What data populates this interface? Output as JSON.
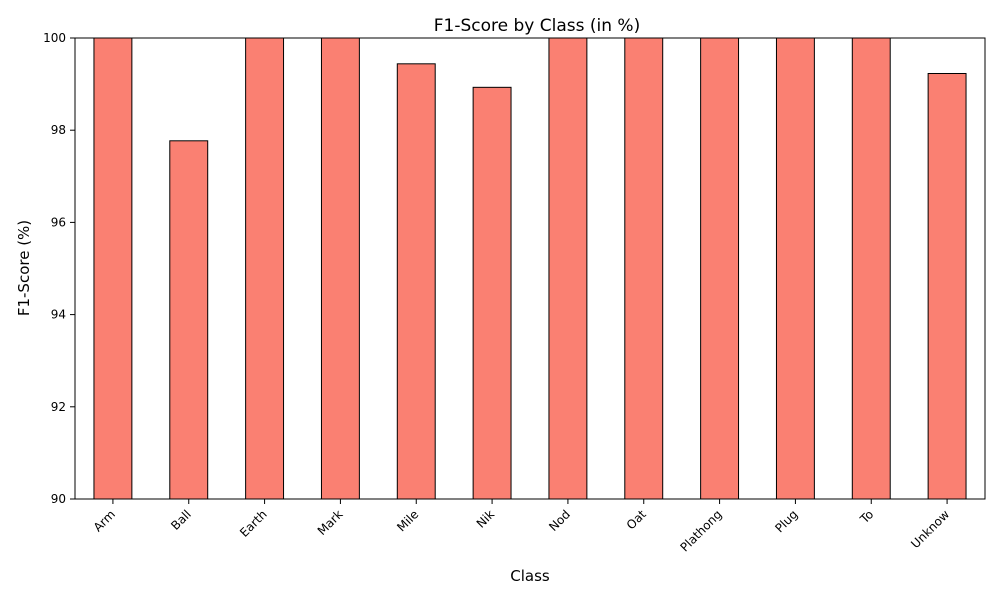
{
  "chart_data": {
    "type": "bar",
    "title": "F1-Score by Class (in %)",
    "xlabel": "Class",
    "ylabel": "F1-Score (%)",
    "categories": [
      "Arm",
      "Ball",
      "Earth",
      "Mark",
      "Mile",
      "Nik",
      "Nod",
      "Oat",
      "Plathong",
      "Plug",
      "To",
      "Unknow"
    ],
    "values": [
      100,
      97.77,
      100,
      100,
      99.44,
      98.93,
      100,
      100,
      100,
      100,
      100,
      99.23
    ],
    "ylim": [
      90,
      100
    ],
    "yticks": [
      90,
      92,
      94,
      96,
      98,
      100
    ],
    "grid": false,
    "legend": "none",
    "bar_color": "#fa8072",
    "edge_color": "#000000"
  }
}
